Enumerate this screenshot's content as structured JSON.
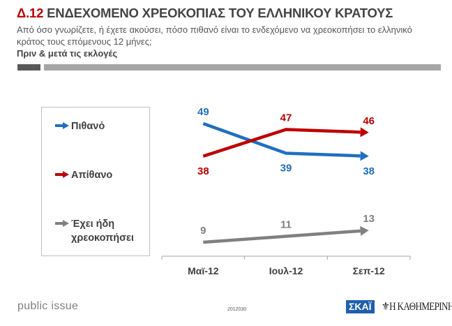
{
  "header": {
    "number": "Δ.12",
    "title": "ΕΝΔΕΧΟΜΕΝΟ ΧΡΕΟΚΟΠΙΑΣ ΤΟΥ ΕΛΛΗΝΙΚΟΥ ΚΡΑΤΟΥΣ",
    "question": "Από όσο γνωρίζετε, ή έχετε ακούσει, πόσο πιθανό είναι το ενδεχόμενο να χρεοκοπήσει το ελληνικό κράτος τους επόμενους 12 μήνες;",
    "subtitle": "Πριν & μετά τις εκλογές"
  },
  "legend": [
    {
      "label": "Πιθανό",
      "color": "#1f6fc0",
      "icon": "arrow-right-icon"
    },
    {
      "label": "Απίθανο",
      "color": "#c00000",
      "icon": "arrow-right-icon"
    },
    {
      "label": "Έχει ήδη χρεοκοπήσει",
      "color": "#808080",
      "icon": "arrow-right-icon"
    }
  ],
  "chart_data": {
    "type": "line",
    "title": "Δ.12 ΕΝΔΕΧΟΜΕΝΟ ΧΡΕΟΚΟΠΙΑΣ ΤΟΥ ΕΛΛΗΝΙΚΟΥ ΚΡΑΤΟΥΣ",
    "categories": [
      "Μαϊ-12",
      "Ιουλ-12",
      "Σεπ-12"
    ],
    "series": [
      {
        "name": "Πιθανό",
        "color": "#1f6fc0",
        "values": [
          49,
          39,
          38
        ]
      },
      {
        "name": "Απίθανο",
        "color": "#c00000",
        "values": [
          38,
          47,
          46
        ]
      },
      {
        "name": "Έχει ήδη χρεοκοπήσει",
        "color": "#808080",
        "values": [
          9,
          11,
          13
        ]
      }
    ],
    "xlabel": "",
    "ylabel": "",
    "ylim": [
      0,
      55
    ],
    "grid": false,
    "legend": "left"
  },
  "footer": {
    "left": "public issue",
    "code": "2012030",
    "logo1": "ΣΚΑΪ",
    "logo2": "Η ΚΑΘΗΜΕΡΙΝΗ"
  }
}
